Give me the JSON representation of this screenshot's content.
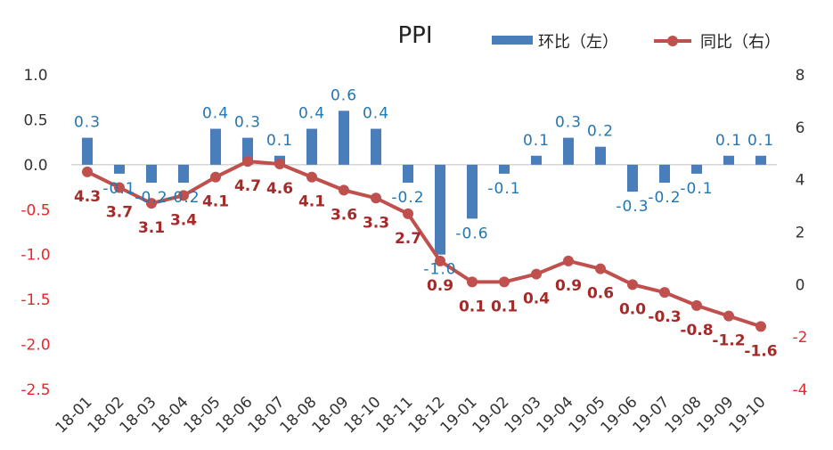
{
  "chart_data": {
    "type": "bar+line",
    "title": "PPI",
    "categories": [
      "18-01",
      "18-02",
      "18-03",
      "18-04",
      "18-05",
      "18-06",
      "18-07",
      "18-08",
      "18-09",
      "18-10",
      "18-11",
      "18-12",
      "19-01",
      "19-02",
      "19-03",
      "19-04",
      "19-05",
      "19-06",
      "19-07",
      "19-08",
      "19-09",
      "19-10"
    ],
    "series": [
      {
        "name": "环比（左）",
        "type": "bar",
        "axis": "left",
        "color": "#4a7ebb",
        "label_color": "#1f77b4",
        "values": [
          0.3,
          -0.1,
          -0.2,
          -0.2,
          0.4,
          0.3,
          0.1,
          0.4,
          0.6,
          0.4,
          -0.2,
          -1.0,
          -0.6,
          -0.1,
          0.1,
          0.3,
          0.2,
          -0.3,
          -0.2,
          -0.1,
          0.1,
          0.1
        ],
        "labels": [
          "0.3",
          "-0.1",
          "-0.2",
          "-0.2",
          "0.4",
          "0.3",
          "0.1",
          "0.4",
          "0.6",
          "0.4",
          "-0.2",
          "-1.0",
          "-0.6",
          "-0.1",
          "0.1",
          "0.3",
          "0.2",
          "-0.3",
          "-0.2",
          "-0.1",
          "0.1",
          "0.1"
        ]
      },
      {
        "name": "同比（右）",
        "type": "line",
        "axis": "right",
        "color": "#c0504d",
        "label_color": "#a52a2a",
        "values": [
          4.3,
          3.7,
          3.1,
          3.4,
          4.1,
          4.7,
          4.6,
          4.1,
          3.6,
          3.3,
          2.7,
          0.9,
          0.1,
          0.1,
          0.4,
          0.9,
          0.6,
          0.0,
          -0.3,
          -0.8,
          -1.2,
          -1.6
        ],
        "labels": [
          "4.3",
          "3.7",
          "3.1",
          "3.4",
          "4.1",
          "4.7",
          "4.6",
          "4.1",
          "3.6",
          "3.3",
          "2.7",
          "0.9",
          "0.1",
          "0.1",
          "0.4",
          "0.9",
          "0.6",
          "0.0",
          "-0.3",
          "-0.8",
          "-1.2",
          "-1.6"
        ]
      }
    ],
    "left_axis": {
      "ylim": [
        -2.5,
        1.0
      ],
      "ticks": [
        1.0,
        0.5,
        0.0,
        -0.5,
        -1.0,
        -1.5,
        -2.0,
        -2.5
      ],
      "tick_labels": [
        "1.0",
        "0.5",
        "0.0",
        "-0.5",
        "-1.0",
        "-1.5",
        "-2.0",
        "-2.5"
      ],
      "positive_color": "#333333",
      "negative_color": "#e8272b"
    },
    "right_axis": {
      "ylim": [
        -4,
        8
      ],
      "ticks": [
        8,
        6,
        4,
        2,
        0,
        -2,
        -4
      ],
      "tick_labels": [
        "8",
        "6",
        "4",
        "2",
        "0",
        "-2",
        "-4"
      ],
      "positive_color": "#333333",
      "negative_color": "#e8272b"
    },
    "legend_position": "top-right",
    "grid": false
  }
}
